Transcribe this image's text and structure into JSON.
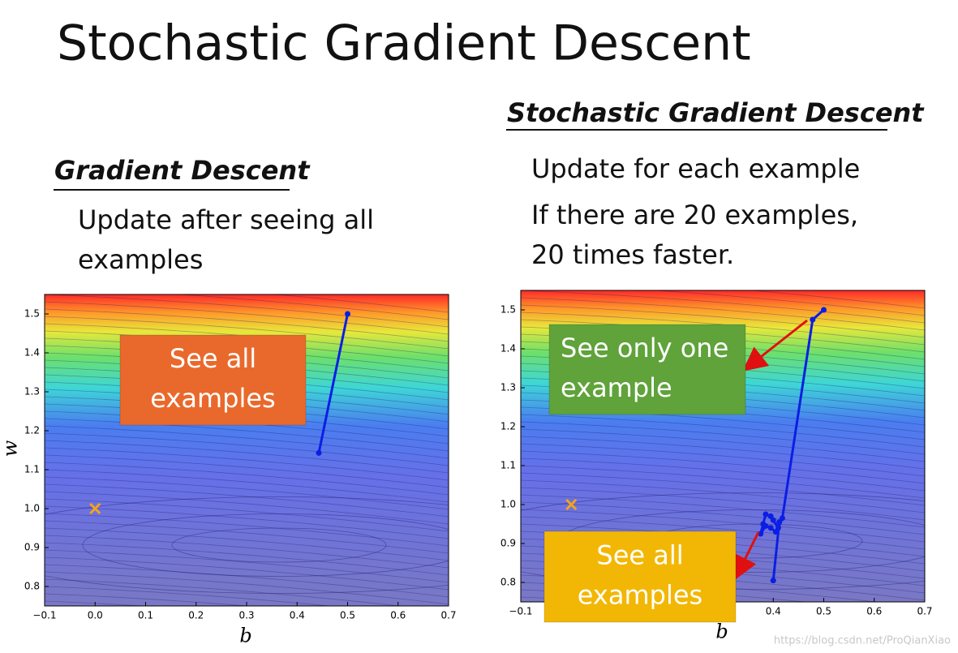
{
  "title": "Stochastic Gradient Descent",
  "left": {
    "heading": "Gradient Descent",
    "lines": [
      "Update after seeing all",
      "examples"
    ]
  },
  "right": {
    "heading": "Stochastic Gradient Descent",
    "lines": [
      "Update for each example",
      "If there are 20 examples,",
      "20 times faster."
    ]
  },
  "chart_data": [
    {
      "type": "line",
      "xlabel": "b",
      "ylabel": "w",
      "xlim": [
        -0.1,
        0.7
      ],
      "ylim": [
        0.75,
        1.55
      ],
      "xticks": [
        {
          "value": -0.1,
          "label": "−0.1"
        },
        {
          "value": 0,
          "label": "0.0"
        },
        0.1,
        0.2,
        0.3,
        0.4,
        0.5,
        0.6,
        0.7
      ],
      "yticks": [
        0.8,
        0.9,
        {
          "value": 1,
          "label": "1.0"
        },
        1.1,
        1.2,
        1.3,
        1.4,
        1.5
      ],
      "series": [
        {
          "color": "#0a1ee6",
          "x": [
            0.5,
            0.443
          ],
          "values": [
            1.5,
            1.143
          ]
        }
      ],
      "target": {
        "x": 0,
        "y": 1,
        "color": "#f5a31a"
      },
      "annotations": [
        {
          "lines": [
            "See all",
            "examples"
          ],
          "color": "#e9692c"
        }
      ]
    },
    {
      "type": "line",
      "xlabel": "b",
      "xlim": [
        -0.1,
        0.7
      ],
      "ylim": [
        0.75,
        1.55
      ],
      "xticks": [
        {
          "value": -0.1,
          "label": "−0.1"
        },
        0.4,
        0.5,
        0.6,
        0.7
      ],
      "yticks": [
        0.8,
        0.9,
        {
          "value": 1,
          "label": "1.0"
        },
        1.1,
        1.2,
        1.3,
        1.4,
        1.5
      ],
      "series": [
        {
          "color": "#0a1ee6",
          "x": [
            0.5,
            0.478,
            0.418,
            0.41,
            0.4,
            0.395,
            0.385,
            0.38,
            0.375,
            0.385,
            0.395,
            0.405,
            0.412,
            0.4
          ],
          "values": [
            1.5,
            1.475,
            0.965,
            0.94,
            0.96,
            0.97,
            0.975,
            0.95,
            0.925,
            0.945,
            0.94,
            0.93,
            0.955,
            0.805
          ]
        }
      ],
      "target": {
        "x": 0,
        "y": 1,
        "color": "#f5a31a"
      },
      "annotations": [
        {
          "lines": [
            "See only one",
            "example"
          ],
          "color": "#5fa33a"
        },
        {
          "lines": [
            "See all",
            "examples"
          ],
          "color": "#f2b705"
        }
      ]
    }
  ],
  "watermark": "https://blog.csdn.net/ProQianXiao"
}
